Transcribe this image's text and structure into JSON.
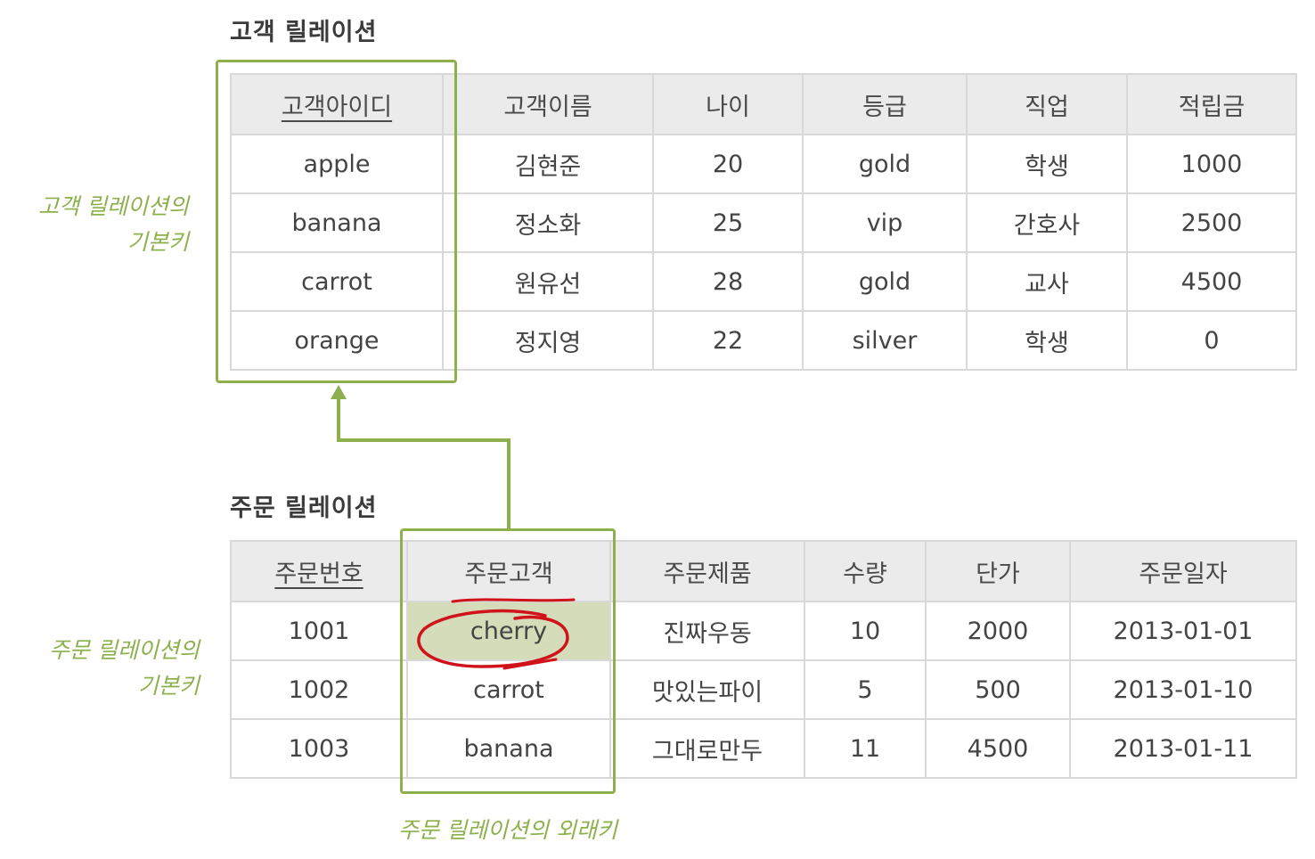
{
  "customer_relation": {
    "title": "고객 릴레이션",
    "headers": [
      "고객아이디",
      "고객이름",
      "나이",
      "등급",
      "직업",
      "적립금"
    ],
    "rows": [
      [
        "apple",
        "김현준",
        "20",
        "gold",
        "학생",
        "1000"
      ],
      [
        "banana",
        "정소화",
        "25",
        "vip",
        "간호사",
        "2500"
      ],
      [
        "carrot",
        "원유선",
        "28",
        "gold",
        "교사",
        "4500"
      ],
      [
        "orange",
        "정지영",
        "22",
        "silver",
        "학생",
        "0"
      ]
    ]
  },
  "order_relation": {
    "title": "주문 릴레이션",
    "headers": [
      "주문번호",
      "주문고객",
      "주문제품",
      "수량",
      "단가",
      "주문일자"
    ],
    "rows": [
      [
        "1001",
        "cherry",
        "진짜우동",
        "10",
        "2000",
        "2013-01-01"
      ],
      [
        "1002",
        "carrot",
        "맛있는파이",
        "5",
        "500",
        "2013-01-10"
      ],
      [
        "1003",
        "banana",
        "그대로만두",
        "11",
        "4500",
        "2013-01-11"
      ]
    ]
  },
  "annotations": {
    "customer_pk": [
      "고객 릴레이션의",
      "기본키"
    ],
    "order_pk": [
      "주문 릴레이션의",
      "기본키"
    ],
    "order_fk": "주문 릴레이션의 외래키"
  },
  "colors": {
    "accent_green": "#8db04d",
    "highlight_cell": "#d4dcb9",
    "header_bg": "#ebebeb",
    "red_mark": "#d0121b"
  }
}
